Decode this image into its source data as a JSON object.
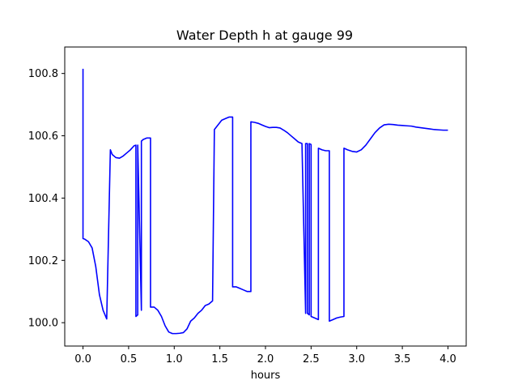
{
  "chart_data": {
    "type": "line",
    "title": "Water Depth h at gauge 99",
    "xlabel": "hours",
    "ylabel": "",
    "xlim": [
      -0.2,
      4.2
    ],
    "ylim": [
      99.925,
      100.885
    ],
    "x_ticks": [
      0.0,
      0.5,
      1.0,
      1.5,
      2.0,
      2.5,
      3.0,
      3.5,
      4.0
    ],
    "x_tick_labels": [
      "0.0",
      "0.5",
      "1.0",
      "1.5",
      "2.0",
      "2.5",
      "3.0",
      "3.5",
      "4.0"
    ],
    "y_ticks": [
      100.0,
      100.2,
      100.4,
      100.6,
      100.8
    ],
    "y_tick_labels": [
      "100.0",
      "100.2",
      "100.4",
      "100.6",
      "100.8"
    ],
    "grid": false,
    "legend": "none",
    "series": [
      {
        "color": "#0000ff",
        "x": [
          0.0,
          0.0,
          0.02,
          0.06,
          0.1,
          0.14,
          0.18,
          0.22,
          0.26,
          0.3,
          0.3,
          0.32,
          0.36,
          0.4,
          0.44,
          0.48,
          0.52,
          0.56,
          0.58,
          0.58,
          0.6,
          0.6,
          0.64,
          0.64,
          0.66,
          0.7,
          0.74,
          0.74,
          0.78,
          0.82,
          0.86,
          0.9,
          0.94,
          0.98,
          1.02,
          1.06,
          1.1,
          1.14,
          1.18,
          1.22,
          1.26,
          1.3,
          1.34,
          1.38,
          1.42,
          1.44,
          1.44,
          1.48,
          1.52,
          1.56,
          1.6,
          1.64,
          1.64,
          1.68,
          1.72,
          1.76,
          1.8,
          1.84,
          1.84,
          1.88,
          1.92,
          1.96,
          2.0,
          2.04,
          2.08,
          2.12,
          2.16,
          2.2,
          2.24,
          2.28,
          2.32,
          2.36,
          2.4,
          2.44,
          2.44,
          2.46,
          2.46,
          2.48,
          2.48,
          2.5,
          2.5,
          2.54,
          2.58,
          2.58,
          2.62,
          2.66,
          2.7,
          2.7,
          2.74,
          2.78,
          2.82,
          2.86,
          2.86,
          2.9,
          2.95,
          3.0,
          3.05,
          3.1,
          3.15,
          3.2,
          3.25,
          3.3,
          3.35,
          3.4,
          3.45,
          3.5,
          3.55,
          3.6,
          3.65,
          3.7,
          3.75,
          3.8,
          3.85,
          3.9,
          3.95,
          4.0
        ],
        "y": [
          100.815,
          100.27,
          100.268,
          100.26,
          100.24,
          100.18,
          100.09,
          100.04,
          100.012,
          100.555,
          100.555,
          100.54,
          100.53,
          100.528,
          100.535,
          100.545,
          100.555,
          100.568,
          100.57,
          100.02,
          100.025,
          100.57,
          100.04,
          100.583,
          100.588,
          100.593,
          100.593,
          100.05,
          100.05,
          100.04,
          100.02,
          99.99,
          99.97,
          99.965,
          99.965,
          99.966,
          99.968,
          99.98,
          100.005,
          100.015,
          100.03,
          100.04,
          100.055,
          100.06,
          100.07,
          100.62,
          100.62,
          100.635,
          100.65,
          100.655,
          100.66,
          100.66,
          100.115,
          100.115,
          100.11,
          100.105,
          100.1,
          100.1,
          100.645,
          100.643,
          100.64,
          100.635,
          100.63,
          100.626,
          100.627,
          100.627,
          100.625,
          100.618,
          100.61,
          100.6,
          100.59,
          100.58,
          100.575,
          100.03,
          100.575,
          100.575,
          100.03,
          100.025,
          100.575,
          100.572,
          100.02,
          100.015,
          100.01,
          100.56,
          100.555,
          100.552,
          100.552,
          100.005,
          100.01,
          100.015,
          100.018,
          100.02,
          100.56,
          100.555,
          100.55,
          100.548,
          100.555,
          100.57,
          100.59,
          100.61,
          100.625,
          100.635,
          100.637,
          100.636,
          100.634,
          100.633,
          100.632,
          100.631,
          100.628,
          100.626,
          100.624,
          100.622,
          100.62,
          100.619,
          100.618,
          100.618
        ]
      }
    ]
  }
}
